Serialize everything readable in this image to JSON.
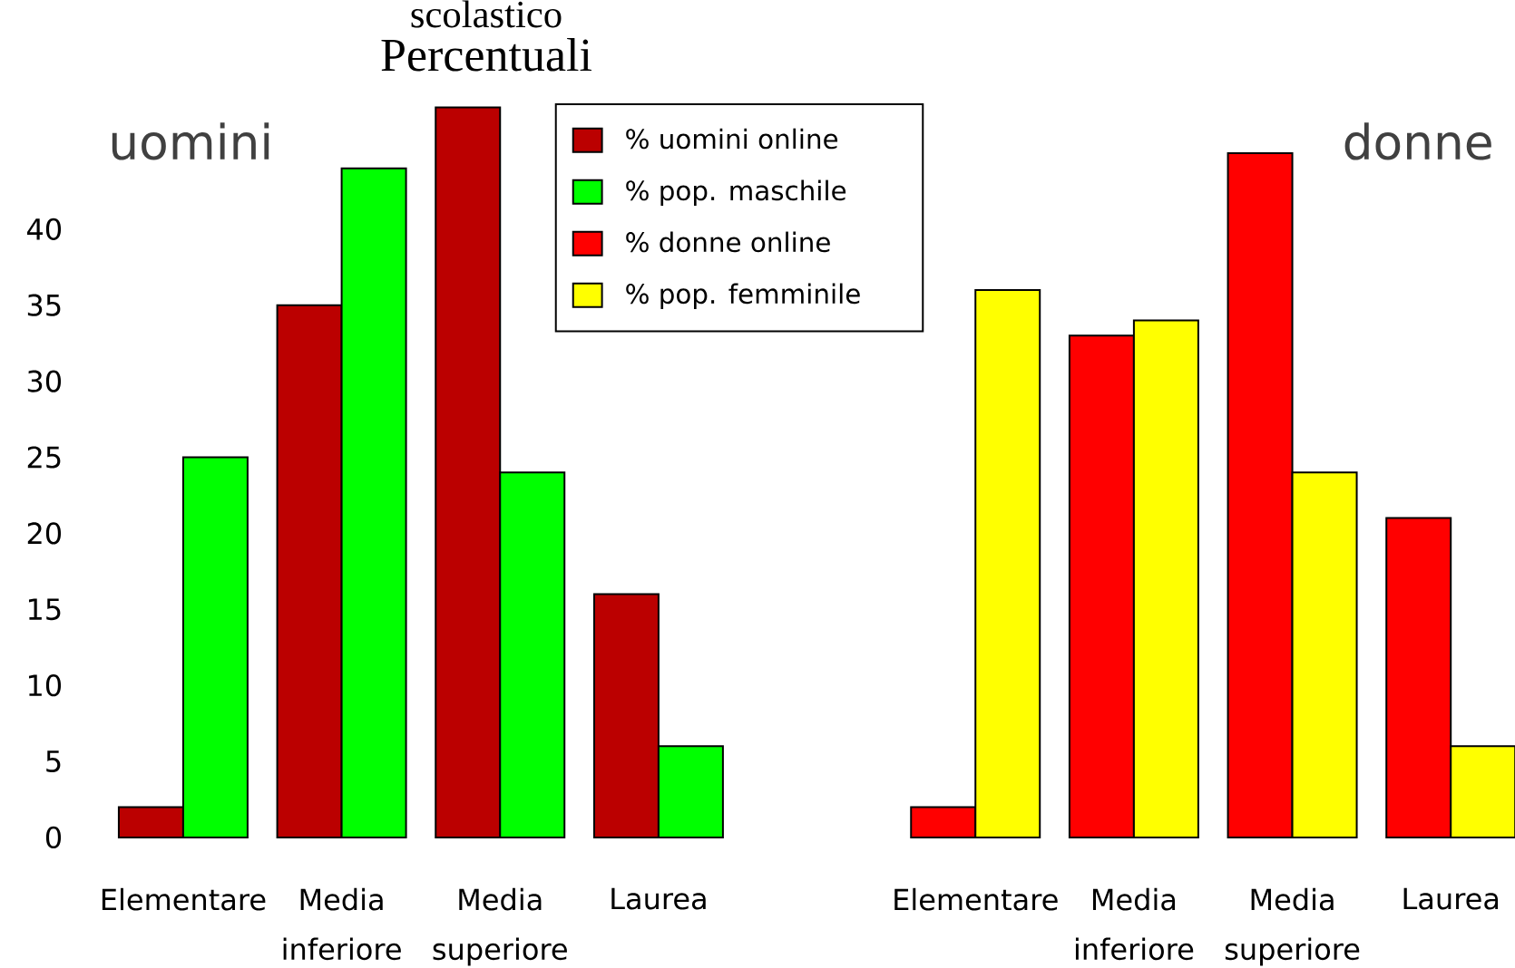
{
  "chart_data": {
    "type": "bar",
    "title": "scolastico",
    "subtitle": "Percentuali",
    "annotations": [
      "uomini",
      "donne"
    ],
    "categories": [
      "Elementare",
      "Media inferiore",
      "Media superiore",
      "Laurea",
      null,
      "Elementare",
      "Media inferiore",
      "Media superiore",
      "Laurea"
    ],
    "series": [
      {
        "name": "% uomini online",
        "color": "#bb0000",
        "values": [
          2,
          35,
          48,
          16,
          null,
          null,
          null,
          null,
          null
        ]
      },
      {
        "name": "% pop. maschile",
        "color": "#00ff00",
        "values": [
          25,
          44,
          24,
          6,
          null,
          null,
          null,
          null,
          null
        ]
      },
      {
        "name": "% donne online",
        "color": "#ff0000",
        "values": [
          null,
          null,
          null,
          null,
          null,
          2,
          33,
          45,
          21
        ]
      },
      {
        "name": "% pop. femminile",
        "color": "#ffff00",
        "values": [
          null,
          null,
          null,
          null,
          null,
          36,
          34,
          24,
          6
        ]
      }
    ],
    "ylim": [
      0,
      48
    ],
    "yticks": [
      0,
      5,
      10,
      15,
      20,
      25,
      30,
      35,
      40
    ],
    "legend": "top"
  }
}
